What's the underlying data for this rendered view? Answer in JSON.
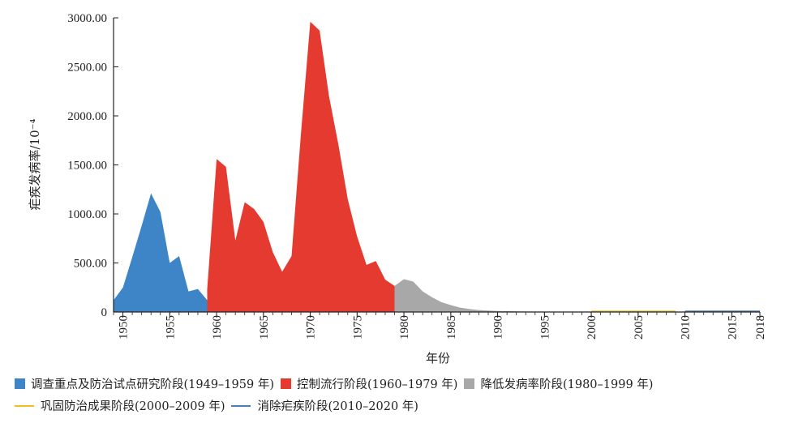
{
  "chart_data": {
    "type": "area",
    "ylabel": "疟疾发病率/10⁻⁴",
    "xlabel": "年份",
    "ylim": [
      0,
      3000
    ],
    "xlim": [
      1949,
      2018
    ],
    "y_ticks": [
      "0",
      "500.00",
      "1000.00",
      "1500.00",
      "2000.00",
      "2500.00",
      "3000.00"
    ],
    "x_ticks": [
      "1950",
      "1955",
      "1960",
      "1965",
      "1970",
      "1975",
      "1980",
      "1985",
      "1990",
      "1995",
      "2000",
      "2005",
      "2010",
      "2015",
      "2018"
    ],
    "series": [
      {
        "name": "调查重点及防治试点研究阶段(1949–1959 年)",
        "style": "area",
        "color": "#3d85c6",
        "x": [
          1949,
          1950,
          1951,
          1952,
          1953,
          1954,
          1955,
          1956,
          1957,
          1958,
          1959,
          1960
        ],
        "y": [
          120,
          250,
          560,
          880,
          1210,
          1020,
          500,
          570,
          210,
          235,
          120,
          20
        ]
      },
      {
        "name": "控制流行阶段(1960–1979 年)",
        "style": "area",
        "color": "#e53a2f",
        "x": [
          1959,
          1960,
          1961,
          1962,
          1963,
          1964,
          1965,
          1966,
          1967,
          1968,
          1969,
          1970,
          1971,
          1972,
          1973,
          1974,
          1975,
          1976,
          1977,
          1978,
          1979,
          1980
        ],
        "y": [
          235,
          1560,
          1480,
          730,
          1120,
          1050,
          920,
          610,
          410,
          570,
          1810,
          2960,
          2870,
          2200,
          1710,
          1150,
          770,
          480,
          520,
          330,
          265,
          30
        ]
      },
      {
        "name": "降低发病率阶段(1980–1999 年)",
        "style": "area",
        "color": "#a8a8a8",
        "x": [
          1979,
          1980,
          1981,
          1982,
          1983,
          1984,
          1985,
          1986,
          1987,
          1988,
          1989,
          1990,
          1991,
          1992,
          1993,
          1994,
          1995,
          1996,
          1997,
          1998,
          1999
        ],
        "y": [
          265,
          335,
          310,
          210,
          150,
          100,
          70,
          45,
          30,
          20,
          14,
          11,
          9,
          7,
          5,
          4,
          3,
          3,
          2,
          2,
          2
        ]
      },
      {
        "name": "巩固防治成果阶段(2000–2009 年)",
        "style": "line",
        "color": "#f0c020",
        "x": [
          2000,
          2001,
          2002,
          2003,
          2004,
          2005,
          2006,
          2007,
          2008,
          2009
        ],
        "y": [
          2,
          2,
          3,
          3,
          3,
          3,
          3,
          3,
          2,
          2
        ]
      },
      {
        "name": "消除疟疾阶段(2010–2020 年)",
        "style": "line",
        "color": "#4a80b8",
        "x": [
          2010,
          2011,
          2012,
          2013,
          2014,
          2015,
          2016,
          2017,
          2018
        ],
        "y": [
          1,
          1,
          1,
          1,
          1,
          1,
          1,
          1,
          1
        ]
      }
    ],
    "legend": {
      "placement": "bottom",
      "rows": [
        [
          0,
          1,
          2
        ],
        [
          3,
          4
        ]
      ]
    }
  }
}
